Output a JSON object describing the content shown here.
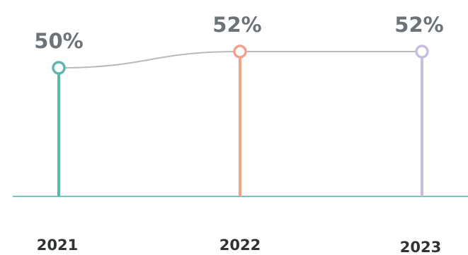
{
  "chart_data": {
    "type": "line",
    "categories": [
      "2021",
      "2022",
      "2023"
    ],
    "values": [
      50,
      52,
      52
    ],
    "value_labels": [
      "50%",
      "52%",
      "52%"
    ],
    "ylim": [
      0,
      60
    ],
    "grid": false,
    "legend": "none",
    "colors": {
      "stems": [
        "#5bb8ad",
        "#f0a28a",
        "#c8bde0"
      ],
      "connector": "#b9b9b9",
      "baseline": "#7cc3bb",
      "value_text": "#6b7278",
      "year_text": "#2f3336"
    }
  }
}
